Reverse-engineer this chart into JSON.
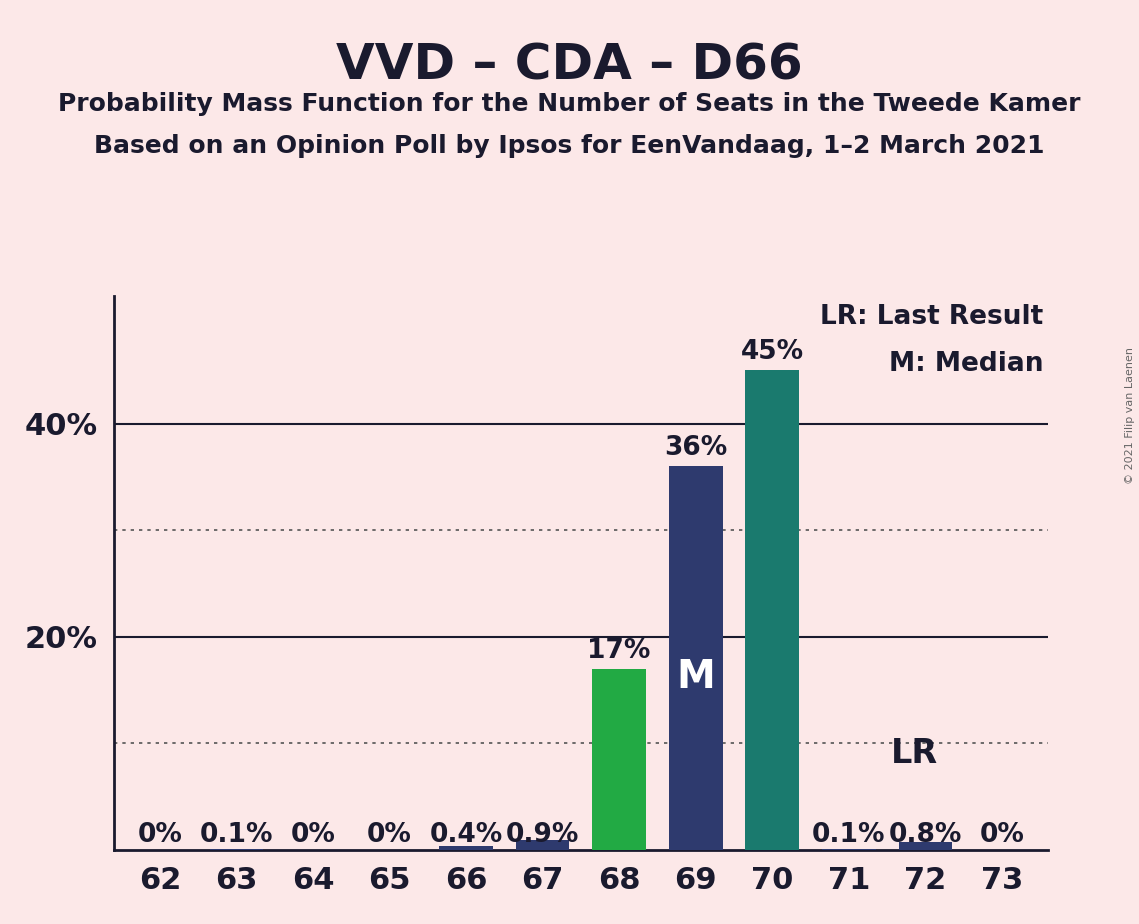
{
  "title": "VVD – CDA – D66",
  "subtitle1": "Probability Mass Function for the Number of Seats in the Tweede Kamer",
  "subtitle2": "Based on an Opinion Poll by Ipsos for EenVandaag, 1–2 March 2021",
  "copyright": "© 2021 Filip van Laenen",
  "categories": [
    62,
    63,
    64,
    65,
    66,
    67,
    68,
    69,
    70,
    71,
    72,
    73
  ],
  "values": [
    0.0,
    0.001,
    0.0,
    0.0,
    0.004,
    0.009,
    0.17,
    0.36,
    0.45,
    0.001,
    0.008,
    0.0
  ],
  "bar_labels": [
    "0%",
    "0.1%",
    "0%",
    "0%",
    "0.4%",
    "0.9%",
    "17%",
    "36%",
    "45%",
    "0.1%",
    "0.8%",
    "0%"
  ],
  "bar_colors": [
    "#2e3a6e",
    "#2e3a6e",
    "#2e3a6e",
    "#2e3a6e",
    "#2e3a6e",
    "#2e3a6e",
    "#22aa44",
    "#2e3a6e",
    "#1a7a6e",
    "#2e3a6e",
    "#2e3a6e",
    "#2e3a6e"
  ],
  "median_bar_seat": 69,
  "lr_seat": 72,
  "lr_label": "LR",
  "median_label": "M",
  "legend_lr": "LR: Last Result",
  "legend_m": "M: Median",
  "background_color": "#fce8e8",
  "ylim": [
    0,
    0.52
  ],
  "solid_gridlines": [
    0.2,
    0.4
  ],
  "dotted_gridlines": [
    0.1,
    0.3
  ],
  "ytick_positions": [
    0.2,
    0.4
  ],
  "ytick_labels": [
    "20%",
    "40%"
  ],
  "title_fontsize": 36,
  "subtitle_fontsize": 18,
  "tick_fontsize": 22,
  "label_fontsize": 19,
  "legend_fontsize": 19
}
